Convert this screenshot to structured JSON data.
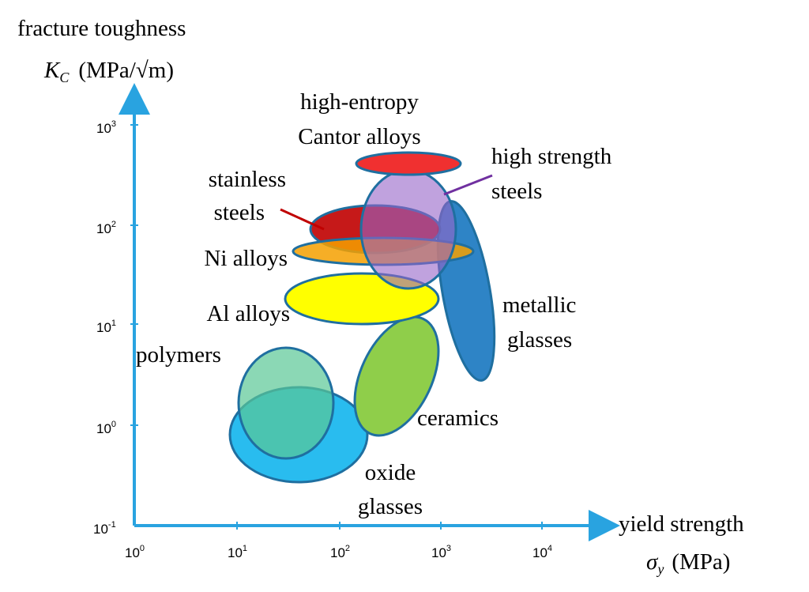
{
  "y_axis": {
    "title": "fracture toughness",
    "symbol": "K",
    "subscript": "C",
    "unit": "(MPa/√m)",
    "ticks": [
      {
        "base": "10",
        "exp": "3"
      },
      {
        "base": "10",
        "exp": "2"
      },
      {
        "base": "10",
        "exp": "1"
      },
      {
        "base": "10",
        "exp": "0"
      },
      {
        "base": "10",
        "exp": "-1"
      }
    ]
  },
  "x_axis": {
    "title": "yield strength",
    "symbol": "σ",
    "subscript": "y",
    "unit": "(MPa)",
    "ticks": [
      {
        "base": "10",
        "exp": "0"
      },
      {
        "base": "10",
        "exp": "1"
      },
      {
        "base": "10",
        "exp": "2"
      },
      {
        "base": "10",
        "exp": "3"
      },
      {
        "base": "10",
        "exp": "4"
      }
    ]
  },
  "regions": [
    {
      "lines": [
        "high-entropy",
        "Cantor alloys"
      ]
    },
    {
      "lines": [
        "high strength",
        "steels"
      ]
    },
    {
      "lines": [
        "stainless",
        "steels"
      ]
    },
    {
      "lines": [
        "Ni alloys"
      ]
    },
    {
      "lines": [
        "Al alloys"
      ]
    },
    {
      "lines": [
        "metallic",
        "glasses"
      ]
    },
    {
      "lines": [
        "polymers"
      ]
    },
    {
      "lines": [
        "ceramics"
      ]
    },
    {
      "lines": [
        "oxide",
        "glasses"
      ]
    }
  ]
}
